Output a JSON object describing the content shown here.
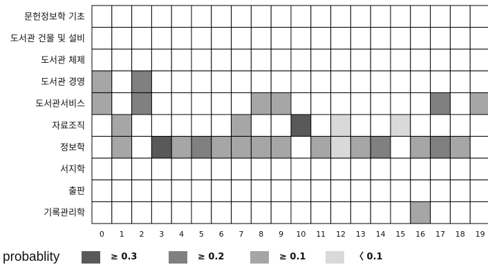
{
  "chart_data": {
    "type": "heatmap",
    "rows": [
      "문헌정보학 기초",
      "도서관 건물 및 설비",
      "도서관 체제",
      "도서관 경영",
      "도서관서비스",
      "자료조직",
      "정보학",
      "서지학",
      "출판",
      "기록관리학"
    ],
    "columns": [
      "0",
      "1",
      "2",
      "3",
      "4",
      "5",
      "6",
      "7",
      "8",
      "9",
      "10",
      "11",
      "12",
      "13",
      "14",
      "15",
      "16",
      "17",
      "18",
      "19"
    ],
    "cells": [
      [
        0,
        0,
        0,
        0,
        0,
        0,
        0,
        0,
        0,
        0,
        0,
        0,
        0,
        0,
        0,
        0,
        0,
        0,
        0,
        0
      ],
      [
        0,
        0,
        0,
        0,
        0,
        0,
        0,
        0,
        0,
        0,
        0,
        0,
        0,
        0,
        0,
        0,
        0,
        0,
        0,
        0
      ],
      [
        0,
        0,
        0,
        0,
        0,
        0,
        0,
        0,
        0,
        0,
        0,
        0,
        0,
        0,
        0,
        0,
        0,
        0,
        0,
        0
      ],
      [
        2,
        0,
        3,
        0,
        0,
        0,
        0,
        0,
        0,
        0,
        0,
        0,
        0,
        0,
        0,
        0,
        0,
        0,
        0,
        0
      ],
      [
        2,
        0,
        3,
        0,
        0,
        0,
        0,
        0,
        2,
        2,
        0,
        0,
        0,
        0,
        0,
        0,
        0,
        3,
        0,
        2
      ],
      [
        0,
        2,
        0,
        0,
        0,
        0,
        0,
        2,
        0,
        0,
        4,
        0,
        1,
        0,
        0,
        1,
        0,
        0,
        0,
        0
      ],
      [
        0,
        2,
        0,
        4,
        2,
        3,
        2,
        2,
        2,
        2,
        0,
        2,
        1,
        2,
        3,
        0,
        2,
        3,
        2,
        0
      ],
      [
        0,
        0,
        0,
        0,
        0,
        0,
        0,
        0,
        0,
        0,
        0,
        0,
        0,
        0,
        0,
        0,
        0,
        0,
        0,
        0
      ],
      [
        0,
        0,
        0,
        0,
        0,
        0,
        0,
        0,
        0,
        0,
        0,
        0,
        0,
        0,
        0,
        0,
        0,
        0,
        0,
        0
      ],
      [
        0,
        0,
        0,
        0,
        0,
        0,
        0,
        0,
        0,
        0,
        0,
        0,
        0,
        0,
        0,
        0,
        2,
        0,
        0,
        0
      ]
    ],
    "levels": [
      {
        "level": 0,
        "label": "",
        "color": "#ffffff"
      },
      {
        "level": 1,
        "label": "〈 0.1",
        "color": "#d9d9d9"
      },
      {
        "level": 2,
        "label": "≥ 0.1",
        "color": "#a6a6a6"
      },
      {
        "level": 3,
        "label": "≥ 0.2",
        "color": "#808080"
      },
      {
        "level": 4,
        "label": "≥ 0.3",
        "color": "#595959"
      }
    ]
  },
  "legend": {
    "title": "probablity",
    "items": [
      {
        "label": "≥ 0.3",
        "color": "#595959"
      },
      {
        "label": "≥ 0.2",
        "color": "#808080"
      },
      {
        "label": "≥ 0.1",
        "color": "#a6a6a6"
      },
      {
        "label": "〈 0.1",
        "color": "#d9d9d9"
      }
    ]
  }
}
